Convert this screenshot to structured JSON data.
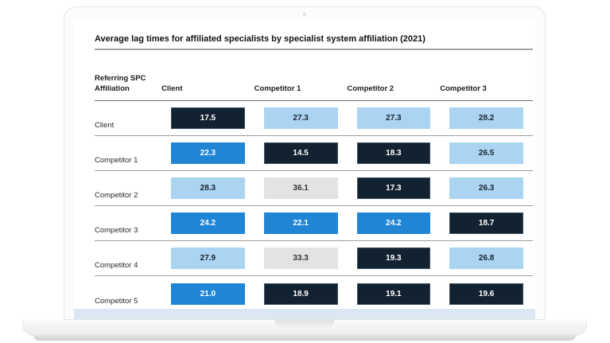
{
  "page": {
    "title": "Average lag times for affiliated specialists by specialist system affiliation (2021)"
  },
  "table": {
    "corner_label": "Referring SPC Affiliation",
    "columns": [
      "Client",
      "Competitor 1",
      "Competitor 2",
      "Competitor 3"
    ],
    "rows": [
      {
        "label": "Client",
        "cells": [
          {
            "v": "17.5",
            "tone": "dark"
          },
          {
            "v": "27.3",
            "tone": "light"
          },
          {
            "v": "27.3",
            "tone": "light"
          },
          {
            "v": "28.2",
            "tone": "light"
          }
        ]
      },
      {
        "label": "Competitor 1",
        "cells": [
          {
            "v": "22.3",
            "tone": "medium"
          },
          {
            "v": "14.5",
            "tone": "dark"
          },
          {
            "v": "18.3",
            "tone": "dark"
          },
          {
            "v": "26.5",
            "tone": "light"
          }
        ]
      },
      {
        "label": "Competitor 2",
        "cells": [
          {
            "v": "28.3",
            "tone": "light"
          },
          {
            "v": "36.1",
            "tone": "gray"
          },
          {
            "v": "17.3",
            "tone": "dark"
          },
          {
            "v": "26.3",
            "tone": "light"
          }
        ]
      },
      {
        "label": "Competitor 3",
        "cells": [
          {
            "v": "24.2",
            "tone": "medium"
          },
          {
            "v": "22.1",
            "tone": "medium"
          },
          {
            "v": "24.2",
            "tone": "medium"
          },
          {
            "v": "18.7",
            "tone": "dark"
          }
        ]
      },
      {
        "label": "Competitor 4",
        "cells": [
          {
            "v": "27.9",
            "tone": "light"
          },
          {
            "v": "33.3",
            "tone": "gray"
          },
          {
            "v": "19.3",
            "tone": "dark"
          },
          {
            "v": "26.8",
            "tone": "light"
          }
        ]
      },
      {
        "label": "Competitor 5",
        "cells": [
          {
            "v": "21.0",
            "tone": "medium"
          },
          {
            "v": "18.9",
            "tone": "dark"
          },
          {
            "v": "19.1",
            "tone": "dark"
          },
          {
            "v": "19.6",
            "tone": "dark"
          }
        ]
      }
    ]
  },
  "colors": {
    "dark": "#122230",
    "medium": "#2185d6",
    "light": "#abd4f2",
    "gray": "#e3e3e3",
    "band": "#dbe7f3"
  },
  "chart_data": {
    "type": "heatmap",
    "title": "Average lag times for affiliated specialists by specialist system affiliation (2021)",
    "x_categories": [
      "Client",
      "Competitor 1",
      "Competitor 2",
      "Competitor 3"
    ],
    "y_axis_label": "Referring SPC Affiliation",
    "y_categories": [
      "Client",
      "Competitor 1",
      "Competitor 2",
      "Competitor 3",
      "Competitor 4",
      "Competitor 5"
    ],
    "values": [
      [
        17.5,
        27.3,
        27.3,
        28.2
      ],
      [
        22.3,
        14.5,
        18.3,
        26.5
      ],
      [
        28.3,
        36.1,
        17.3,
        26.3
      ],
      [
        24.2,
        22.1,
        24.2,
        18.7
      ],
      [
        27.9,
        33.3,
        19.3,
        26.8
      ],
      [
        21.0,
        18.9,
        19.1,
        19.6
      ]
    ],
    "cell_tones": [
      [
        "dark",
        "light",
        "light",
        "light"
      ],
      [
        "medium",
        "dark",
        "dark",
        "light"
      ],
      [
        "light",
        "gray",
        "dark",
        "light"
      ],
      [
        "medium",
        "medium",
        "medium",
        "dark"
      ],
      [
        "light",
        "gray",
        "dark",
        "light"
      ],
      [
        "medium",
        "dark",
        "dark",
        "dark"
      ]
    ],
    "legend_position": "none",
    "grid": false
  }
}
